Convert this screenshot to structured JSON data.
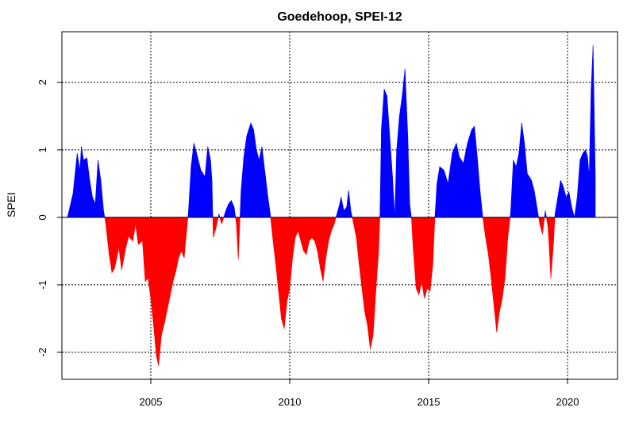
{
  "chart_data": {
    "type": "area",
    "title": "Goedehoop, SPEI-12",
    "xlabel": "",
    "ylabel": "SPEI",
    "xlim": [
      2001.8,
      2021.8
    ],
    "ylim": [
      -2.4,
      2.75
    ],
    "x_ticks": [
      2005,
      2010,
      2015,
      2020
    ],
    "x_tick_labels": [
      "2005",
      "2010",
      "2015",
      "2020"
    ],
    "y_ticks": [
      -2,
      -1,
      0,
      1,
      2
    ],
    "y_tick_labels": [
      "-2",
      "-1",
      "0",
      "1",
      "2"
    ],
    "grid": true,
    "positive_color": "#0000ff",
    "negative_color": "#ff0000",
    "series": [
      {
        "values": [
          [
            2002.0,
            0.0
          ],
          [
            2002.2,
            0.35
          ],
          [
            2002.35,
            0.95
          ],
          [
            2002.45,
            0.7
          ],
          [
            2002.5,
            1.05
          ],
          [
            2002.58,
            0.85
          ],
          [
            2002.7,
            0.88
          ],
          [
            2002.8,
            0.55
          ],
          [
            2002.9,
            0.3
          ],
          [
            2003.0,
            0.2
          ],
          [
            2003.1,
            0.85
          ],
          [
            2003.2,
            0.55
          ],
          [
            2003.3,
            0.1
          ],
          [
            2003.38,
            -0.1
          ],
          [
            2003.5,
            -0.55
          ],
          [
            2003.6,
            -0.82
          ],
          [
            2003.7,
            -0.75
          ],
          [
            2003.85,
            -0.45
          ],
          [
            2003.95,
            -0.78
          ],
          [
            2004.1,
            -0.45
          ],
          [
            2004.2,
            -0.28
          ],
          [
            2004.35,
            -0.35
          ],
          [
            2004.45,
            -0.1
          ],
          [
            2004.55,
            -0.4
          ],
          [
            2004.7,
            -0.35
          ],
          [
            2004.8,
            -0.95
          ],
          [
            2004.9,
            -0.9
          ],
          [
            2005.0,
            -1.2
          ],
          [
            2005.1,
            -1.6
          ],
          [
            2005.2,
            -2.05
          ],
          [
            2005.28,
            -2.2
          ],
          [
            2005.38,
            -1.75
          ],
          [
            2005.5,
            -1.55
          ],
          [
            2005.6,
            -1.35
          ],
          [
            2005.7,
            -1.15
          ],
          [
            2005.8,
            -0.95
          ],
          [
            2005.9,
            -0.8
          ],
          [
            2006.0,
            -0.6
          ],
          [
            2006.1,
            -0.5
          ],
          [
            2006.2,
            -0.6
          ],
          [
            2006.3,
            -0.15
          ],
          [
            2006.35,
            0.05
          ],
          [
            2006.45,
            0.75
          ],
          [
            2006.55,
            1.1
          ],
          [
            2006.65,
            0.95
          ],
          [
            2006.8,
            0.7
          ],
          [
            2006.95,
            0.6
          ],
          [
            2007.05,
            1.05
          ],
          [
            2007.15,
            0.85
          ],
          [
            2007.2,
            0.55
          ],
          [
            2007.25,
            -0.3
          ],
          [
            2007.35,
            -0.15
          ],
          [
            2007.45,
            0.05
          ],
          [
            2007.55,
            -0.1
          ],
          [
            2007.7,
            0.1
          ],
          [
            2007.8,
            0.2
          ],
          [
            2007.9,
            0.25
          ],
          [
            2008.0,
            0.15
          ],
          [
            2008.08,
            -0.1
          ],
          [
            2008.15,
            -0.62
          ],
          [
            2008.25,
            0.4
          ],
          [
            2008.35,
            0.9
          ],
          [
            2008.45,
            1.2
          ],
          [
            2008.6,
            1.4
          ],
          [
            2008.7,
            1.3
          ],
          [
            2008.8,
            1.0
          ],
          [
            2008.9,
            0.85
          ],
          [
            2009.0,
            1.05
          ],
          [
            2009.1,
            0.7
          ],
          [
            2009.2,
            0.35
          ],
          [
            2009.3,
            0.05
          ],
          [
            2009.4,
            -0.35
          ],
          [
            2009.5,
            -0.7
          ],
          [
            2009.6,
            -1.1
          ],
          [
            2009.7,
            -1.5
          ],
          [
            2009.8,
            -1.65
          ],
          [
            2009.9,
            -1.25
          ],
          [
            2010.0,
            -1.05
          ],
          [
            2010.1,
            -0.6
          ],
          [
            2010.2,
            -0.3
          ],
          [
            2010.3,
            -0.2
          ],
          [
            2010.4,
            -0.35
          ],
          [
            2010.5,
            -0.5
          ],
          [
            2010.6,
            -0.55
          ],
          [
            2010.7,
            -0.35
          ],
          [
            2010.8,
            -0.3
          ],
          [
            2010.9,
            -0.35
          ],
          [
            2011.0,
            -0.5
          ],
          [
            2011.1,
            -0.75
          ],
          [
            2011.2,
            -0.95
          ],
          [
            2011.3,
            -0.6
          ],
          [
            2011.4,
            -0.35
          ],
          [
            2011.5,
            -0.2
          ],
          [
            2011.6,
            -0.1
          ],
          [
            2011.7,
            0.05
          ],
          [
            2011.8,
            0.2
          ],
          [
            2011.85,
            0.3
          ],
          [
            2011.95,
            0.1
          ],
          [
            2012.05,
            0.15
          ],
          [
            2012.12,
            0.4
          ],
          [
            2012.2,
            0.1
          ],
          [
            2012.3,
            -0.1
          ],
          [
            2012.4,
            -0.3
          ],
          [
            2012.5,
            -0.7
          ],
          [
            2012.6,
            -1.05
          ],
          [
            2012.7,
            -1.4
          ],
          [
            2012.8,
            -1.6
          ],
          [
            2012.9,
            -1.95
          ],
          [
            2013.0,
            -1.75
          ],
          [
            2013.1,
            -1.1
          ],
          [
            2013.2,
            -0.5
          ],
          [
            2013.25,
            0.05
          ],
          [
            2013.3,
            1.3
          ],
          [
            2013.4,
            1.9
          ],
          [
            2013.5,
            1.8
          ],
          [
            2013.6,
            1.2
          ],
          [
            2013.7,
            0.6
          ],
          [
            2013.78,
            0.0
          ],
          [
            2013.85,
            1.0
          ],
          [
            2013.95,
            1.5
          ],
          [
            2014.05,
            1.8
          ],
          [
            2014.15,
            2.2
          ],
          [
            2014.25,
            1.2
          ],
          [
            2014.32,
            0.2
          ],
          [
            2014.38,
            0.0
          ],
          [
            2014.45,
            -0.5
          ],
          [
            2014.55,
            -1.05
          ],
          [
            2014.65,
            -1.15
          ],
          [
            2014.75,
            -0.95
          ],
          [
            2014.85,
            -1.2
          ],
          [
            2014.95,
            -1.05
          ],
          [
            2015.05,
            -1.1
          ],
          [
            2015.15,
            -0.7
          ],
          [
            2015.22,
            -0.05
          ],
          [
            2015.3,
            0.5
          ],
          [
            2015.4,
            0.75
          ],
          [
            2015.55,
            0.7
          ],
          [
            2015.7,
            0.5
          ],
          [
            2015.85,
            0.95
          ],
          [
            2016.0,
            1.1
          ],
          [
            2016.1,
            0.9
          ],
          [
            2016.25,
            0.8
          ],
          [
            2016.4,
            1.1
          ],
          [
            2016.55,
            1.3
          ],
          [
            2016.65,
            1.35
          ],
          [
            2016.75,
            0.9
          ],
          [
            2016.85,
            0.4
          ],
          [
            2016.95,
            0.0
          ],
          [
            2017.05,
            -0.3
          ],
          [
            2017.15,
            -0.55
          ],
          [
            2017.25,
            -0.9
          ],
          [
            2017.35,
            -1.3
          ],
          [
            2017.45,
            -1.7
          ],
          [
            2017.55,
            -1.4
          ],
          [
            2017.65,
            -1.2
          ],
          [
            2017.75,
            -0.9
          ],
          [
            2017.85,
            -0.3
          ],
          [
            2017.95,
            0.05
          ],
          [
            2018.05,
            0.85
          ],
          [
            2018.15,
            0.75
          ],
          [
            2018.25,
            0.95
          ],
          [
            2018.35,
            1.4
          ],
          [
            2018.45,
            1.1
          ],
          [
            2018.55,
            0.65
          ],
          [
            2018.7,
            0.55
          ],
          [
            2018.8,
            0.4
          ],
          [
            2018.9,
            0.15
          ],
          [
            2019.0,
            -0.1
          ],
          [
            2019.1,
            -0.25
          ],
          [
            2019.2,
            0.1
          ],
          [
            2019.3,
            -0.15
          ],
          [
            2019.4,
            -0.9
          ],
          [
            2019.5,
            -0.35
          ],
          [
            2019.55,
            0.05
          ],
          [
            2019.65,
            0.3
          ],
          [
            2019.75,
            0.55
          ],
          [
            2019.85,
            0.45
          ],
          [
            2019.95,
            0.3
          ],
          [
            2020.05,
            0.38
          ],
          [
            2020.15,
            0.15
          ],
          [
            2020.25,
            0.0
          ],
          [
            2020.35,
            0.3
          ],
          [
            2020.45,
            0.85
          ],
          [
            2020.55,
            0.95
          ],
          [
            2020.65,
            1.0
          ],
          [
            2020.72,
            0.9
          ],
          [
            2020.78,
            0.6
          ],
          [
            2020.85,
            1.9
          ],
          [
            2020.92,
            2.55
          ],
          [
            2021.0,
            0.6
          ]
        ]
      }
    ]
  }
}
